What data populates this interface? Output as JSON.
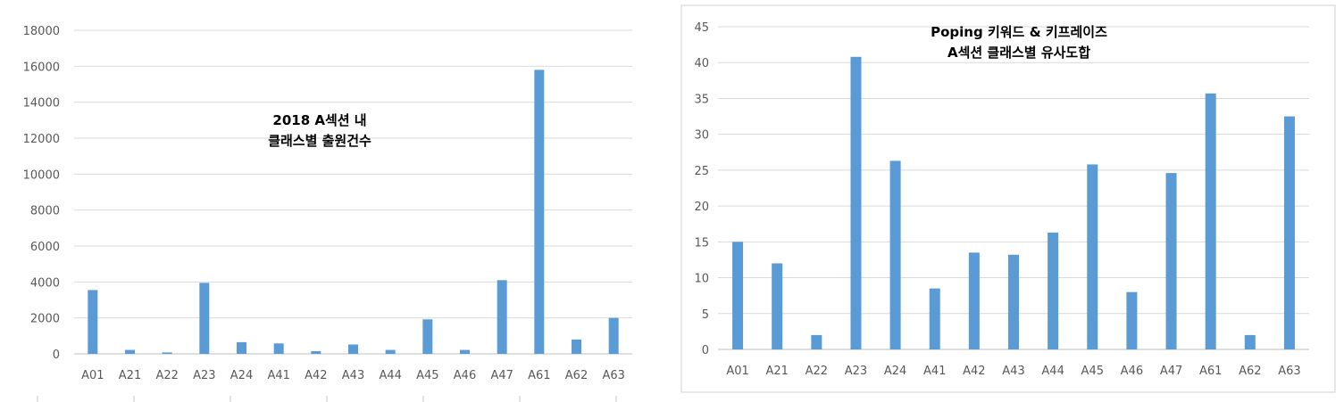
{
  "chart_data": [
    {
      "type": "bar",
      "title": [
        "2018 A섹션 내",
        "클래스별 출원건수"
      ],
      "categories": [
        "A01",
        "A21",
        "A22",
        "A23",
        "A24",
        "A41",
        "A42",
        "A43",
        "A44",
        "A45",
        "A46",
        "A47",
        "A61",
        "A62",
        "A63"
      ],
      "values": [
        3550,
        220,
        80,
        3950,
        650,
        580,
        150,
        520,
        220,
        1920,
        220,
        4100,
        15800,
        800,
        2000
      ],
      "ylim": [
        0,
        18000
      ],
      "yticks": [
        0,
        2000,
        4000,
        6000,
        8000,
        10000,
        12000,
        14000,
        16000,
        18000
      ],
      "grid": true,
      "color": "#5b9bd5"
    },
    {
      "type": "bar",
      "title": [
        "Poping 키워드 & 키프레이즈",
        "A섹션 클래스별 유사도합"
      ],
      "categories": [
        "A01",
        "A21",
        "A22",
        "A23",
        "A24",
        "A41",
        "A42",
        "A43",
        "A44",
        "A45",
        "A46",
        "A47",
        "A61",
        "A62",
        "A63"
      ],
      "values": [
        15,
        12,
        2,
        40.8,
        26.3,
        8.5,
        13.5,
        13.2,
        16.3,
        25.8,
        8,
        24.6,
        35.7,
        2,
        32.5
      ],
      "ylim": [
        0,
        45
      ],
      "yticks": [
        0,
        5,
        10,
        15,
        20,
        25,
        30,
        35,
        40,
        45
      ],
      "grid": true,
      "color": "#5b9bd5"
    }
  ]
}
